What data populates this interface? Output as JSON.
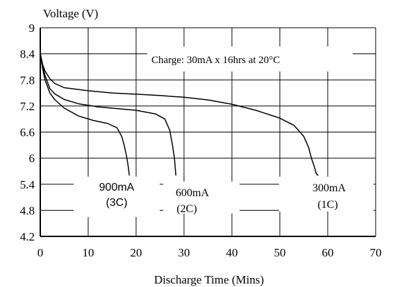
{
  "chart_data": {
    "type": "line",
    "title": "",
    "ylabel": "Voltage (V)",
    "xlabel": "Discharge Time (Mins)",
    "xlim": [
      0,
      70
    ],
    "ylim": [
      4.2,
      9
    ],
    "x_ticks": [
      0,
      10,
      20,
      30,
      40,
      50,
      60,
      70
    ],
    "x_tick_labels": [
      "0",
      "10",
      "20",
      "30",
      "40",
      "50",
      "60",
      "70"
    ],
    "y_ticks": [
      4.2,
      4.8,
      5.4,
      6,
      6.6,
      7.2,
      7.8,
      8.4,
      9
    ],
    "y_tick_labels": [
      "4.2",
      "4.8",
      "5.4",
      "6",
      "6.6",
      "7.2",
      "7.8",
      "8.4",
      "9"
    ],
    "grid": true,
    "line_color": "#000000",
    "annotation": "Charge: 30mA x 16hrs at 20°C",
    "series": [
      {
        "label_line1": "900mA",
        "label_line2": "(3C)",
        "x": [
          0,
          0.5,
          1,
          2,
          3,
          5,
          8,
          11,
          14,
          16,
          17,
          17.5,
          18,
          18.3,
          18.6
        ],
        "y": [
          8.4,
          8.05,
          7.8,
          7.5,
          7.35,
          7.15,
          6.97,
          6.87,
          6.8,
          6.7,
          6.5,
          6.3,
          6.05,
          5.85,
          5.6
        ]
      },
      {
        "label_line1": "600mA",
        "label_line2": "(2C)",
        "x": [
          0,
          0.5,
          1,
          2,
          3,
          5,
          8,
          12,
          16,
          20,
          24,
          26,
          27,
          27.6,
          28,
          28.3
        ],
        "y": [
          8.4,
          8.1,
          7.9,
          7.6,
          7.48,
          7.35,
          7.25,
          7.18,
          7.14,
          7.1,
          7.02,
          6.9,
          6.65,
          6.3,
          6.0,
          5.6
        ]
      },
      {
        "label_line1": "300mA",
        "label_line2": "(1C)",
        "x": [
          0,
          0.5,
          1,
          2,
          3,
          5,
          10,
          15,
          20,
          25,
          30,
          35,
          40,
          45,
          50,
          53,
          55,
          56,
          56.6,
          57.2,
          57.6,
          58
        ],
        "y": [
          8.4,
          8.15,
          8.0,
          7.83,
          7.72,
          7.62,
          7.55,
          7.5,
          7.47,
          7.44,
          7.4,
          7.34,
          7.24,
          7.1,
          6.92,
          6.75,
          6.5,
          6.25,
          6.0,
          5.8,
          5.65,
          5.6
        ]
      }
    ]
  }
}
